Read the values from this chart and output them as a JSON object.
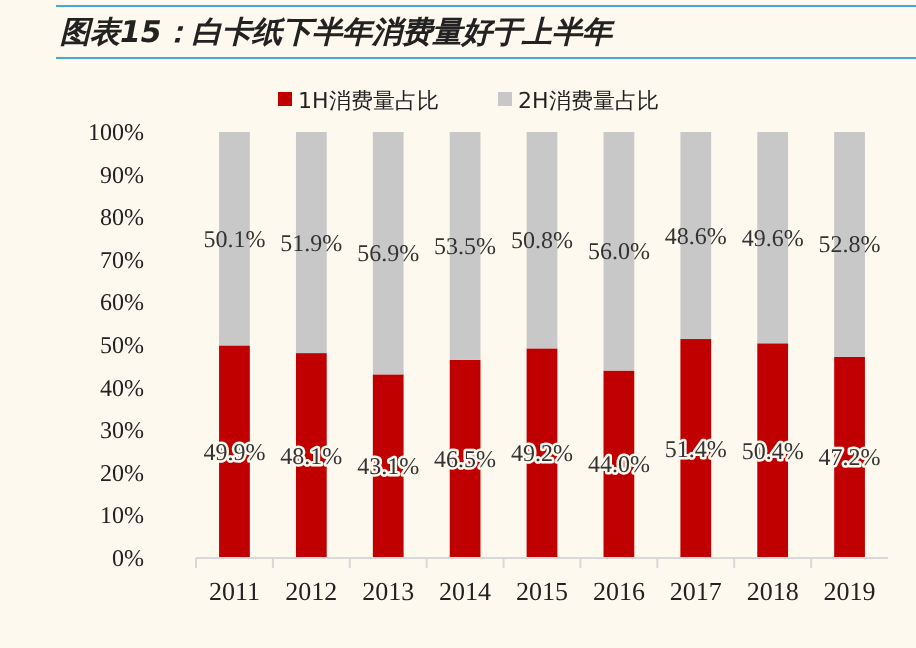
{
  "chart_data": {
    "type": "bar",
    "stacked": true,
    "title": "图表15：白卡纸下半年消费量好于上半年",
    "categories": [
      "2011",
      "2012",
      "2013",
      "2014",
      "2015",
      "2016",
      "2017",
      "2018",
      "2019"
    ],
    "series": [
      {
        "name": "1H消费量占比",
        "color": "#c00000",
        "values": [
          49.9,
          48.1,
          43.1,
          46.5,
          49.2,
          44.0,
          51.4,
          50.4,
          47.2
        ],
        "value_labels": [
          "49.9%",
          "48.1%",
          "43.1%",
          "46.5%",
          "49.2%",
          "44.0%",
          "51.4%",
          "50.4%",
          "47.2%"
        ]
      },
      {
        "name": "2H消费量占比",
        "color": "#c8c8c8",
        "values": [
          50.1,
          51.9,
          56.9,
          53.5,
          50.8,
          56.0,
          48.6,
          49.6,
          52.8
        ],
        "value_labels": [
          "50.1%",
          "51.9%",
          "56.9%",
          "53.5%",
          "50.8%",
          "56.0%",
          "48.6%",
          "49.6%",
          "52.8%"
        ]
      }
    ],
    "ylim": [
      0,
      100
    ],
    "yticks": [
      {
        "value": 0,
        "label": "0%"
      },
      {
        "value": 10,
        "label": "10%"
      },
      {
        "value": 20,
        "label": "20%"
      },
      {
        "value": 30,
        "label": "30%"
      },
      {
        "value": 40,
        "label": "40%"
      },
      {
        "value": 50,
        "label": "50%"
      },
      {
        "value": 60,
        "label": "60%"
      },
      {
        "value": 70,
        "label": "70%"
      },
      {
        "value": 80,
        "label": "80%"
      },
      {
        "value": 90,
        "label": "90%"
      },
      {
        "value": 100,
        "label": "100%"
      }
    ],
    "legend": "top"
  }
}
